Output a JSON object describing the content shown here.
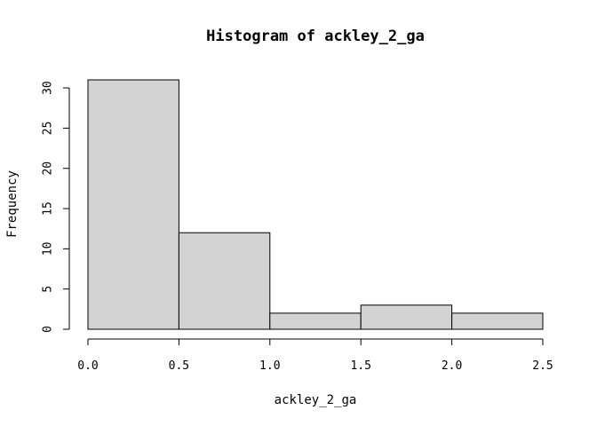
{
  "chart_data": {
    "type": "bar",
    "title": "Histogram of ackley_2_ga",
    "xlabel": "ackley_2_ga",
    "ylabel": "Frequency",
    "bins": [
      {
        "start": 0.0,
        "end": 0.5,
        "count": 31
      },
      {
        "start": 0.5,
        "end": 1.0,
        "count": 12
      },
      {
        "start": 1.0,
        "end": 1.5,
        "count": 2
      },
      {
        "start": 1.5,
        "end": 2.0,
        "count": 3
      },
      {
        "start": 2.0,
        "end": 2.5,
        "count": 2
      }
    ],
    "xlim": [
      0.0,
      2.5
    ],
    "ylim": [
      0,
      31
    ],
    "x_ticks": [
      0.0,
      0.5,
      1.0,
      1.5,
      2.0,
      2.5
    ],
    "x_tick_labels": [
      "0.0",
      "0.5",
      "1.0",
      "1.5",
      "2.0",
      "2.5"
    ],
    "y_ticks": [
      0,
      5,
      10,
      15,
      20,
      25,
      30
    ],
    "y_tick_labels": [
      "0",
      "5",
      "10",
      "15",
      "20",
      "25",
      "30"
    ],
    "grid": false,
    "bar_color": "#d3d3d3",
    "edge_color": "#000000"
  }
}
